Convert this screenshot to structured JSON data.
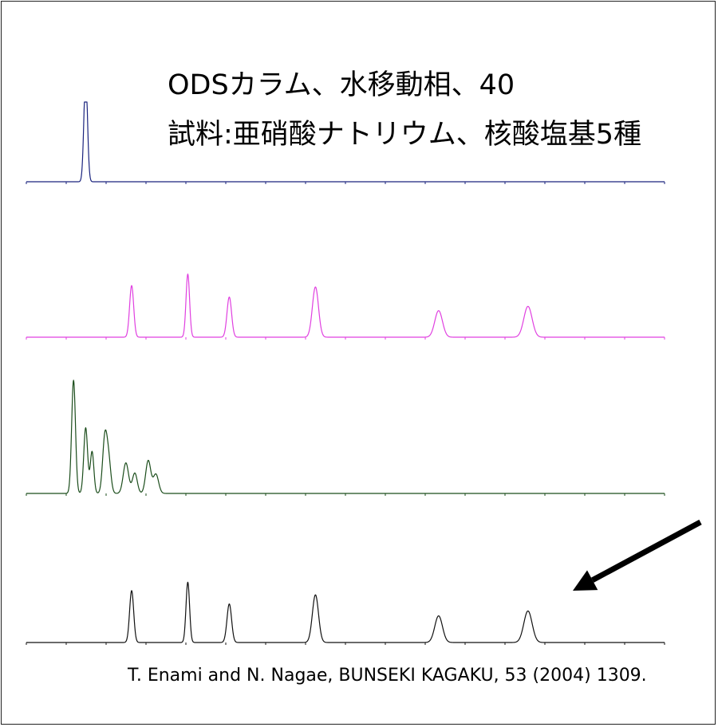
{
  "title_line1": "ODSカラム、水移動相、40",
  "title_line2": "試料:亜硝酸ナトリウム、核酸塩基5種",
  "citation": "T. Enami and N. Nagae, BUNSEKI KAGAKU, 53 (2004) 1309.",
  "chart_data": {
    "type": "line",
    "title": "",
    "xlabel": "",
    "ylabel": "",
    "grid": false,
    "legend": "none",
    "x_range": [
      0,
      100
    ],
    "annotations": [
      {
        "type": "arrow",
        "direction": "down-left",
        "points_to": "bottom trace, right of last peak"
      }
    ],
    "series": [
      {
        "trace": 1,
        "color": "#1a237e",
        "peaks": [
          {
            "x": 9.3,
            "height": 1.0,
            "width": 0.28,
            "flat_top": true
          }
        ]
      },
      {
        "trace": 2,
        "color": "#e040e0",
        "peaks": [
          {
            "x": 16.5,
            "height": 0.72,
            "width": 0.32
          },
          {
            "x": 25.3,
            "height": 0.88,
            "width": 0.28
          },
          {
            "x": 31.8,
            "height": 0.56,
            "width": 0.36
          },
          {
            "x": 45.3,
            "height": 0.7,
            "width": 0.48
          },
          {
            "x": 64.6,
            "height": 0.37,
            "width": 0.6
          },
          {
            "x": 78.6,
            "height": 0.43,
            "width": 0.65
          }
        ]
      },
      {
        "trace": 3,
        "color": "#1b4d1b",
        "peaks": [
          {
            "x": 7.4,
            "height": 1.0,
            "width": 0.3
          },
          {
            "x": 9.3,
            "height": 0.58,
            "width": 0.3
          },
          {
            "x": 10.3,
            "height": 0.37,
            "width": 0.28
          },
          {
            "x": 12.3,
            "height": 0.48,
            "width": 0.35
          },
          {
            "x": 12.9,
            "height": 0.28,
            "width": 0.35
          },
          {
            "x": 15.6,
            "height": 0.27,
            "width": 0.42
          },
          {
            "x": 17.0,
            "height": 0.18,
            "width": 0.38
          },
          {
            "x": 19.1,
            "height": 0.29,
            "width": 0.4
          },
          {
            "x": 20.3,
            "height": 0.17,
            "width": 0.42
          }
        ]
      },
      {
        "trace": 4,
        "color": "#111111",
        "peaks": [
          {
            "x": 16.5,
            "height": 0.74,
            "width": 0.32
          },
          {
            "x": 25.3,
            "height": 0.86,
            "width": 0.28
          },
          {
            "x": 31.8,
            "height": 0.55,
            "width": 0.36
          },
          {
            "x": 45.3,
            "height": 0.68,
            "width": 0.48
          },
          {
            "x": 64.6,
            "height": 0.38,
            "width": 0.6
          },
          {
            "x": 78.6,
            "height": 0.45,
            "width": 0.65
          }
        ]
      }
    ]
  }
}
